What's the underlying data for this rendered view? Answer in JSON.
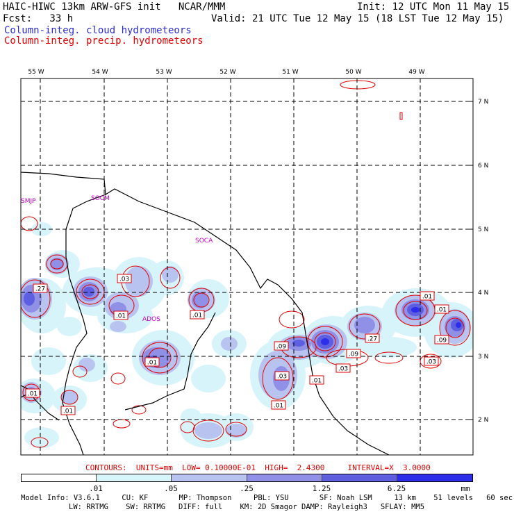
{
  "header": {
    "left1": "HAIC-HIWC 13km ARW-GFS init   NCAR/MMM",
    "right1": "Init: 12 UTC Mon 11 May 15",
    "left2": "Fcst:   33 h",
    "right2": "Valid: 21 UTC Tue 12 May 15 (18 LST Tue 12 May 15)",
    "line3": "Column-integ. cloud hydrometeors",
    "line4": "Column-integ. precip. hydrometeors"
  },
  "colors": {
    "cloud_text": "#2b2bd6",
    "precip_text": "#e00000",
    "contour_red": "#e00000",
    "shade": [
      "#ffffff",
      "#d8f4fb",
      "#b8c3f0",
      "#8f90e6",
      "#5e5ee0",
      "#2d2dea"
    ]
  },
  "map": {
    "lon_labels": [
      "55 W",
      "54 W",
      "53 W",
      "52 W",
      "51 W",
      "50 W",
      "49 W"
    ],
    "lat_labels": [
      "7 N",
      "6 N",
      "5 N",
      "4 N",
      "3 N",
      "2 N"
    ],
    "place_labels": [
      "SMJP",
      "SOCM",
      "SOCA",
      "ADOS"
    ],
    "contour_labels": [
      ".27",
      ".03",
      ".01",
      ".01",
      ".01",
      ".09",
      ".27",
      ".09",
      ".03",
      ".01",
      ".03",
      ".01",
      ".01",
      ".01",
      ".09",
      ".03",
      ".01",
      ".01"
    ]
  },
  "footer": {
    "contours_line": "CONTOURS:  UNITS=mm  LOW= 0.10000E-01  HIGH=  2.4300     INTERVAL=X  3.0000",
    "colorbar_labels": [
      ".01",
      ".05",
      ".25",
      "1.25",
      "6.25",
      "mm"
    ],
    "model_line1": "Model Info: V3.6.1     CU: KF       MP: Thompson     PBL: YSU       SF: Noah LSM     13 km    51 levels   60 sec",
    "model_line2": "LW: RRTMG    SW: RRTMG   DIFF: full    KM: 2D Smagor DAMP: Rayleigh3   SFLAY: MM5"
  }
}
